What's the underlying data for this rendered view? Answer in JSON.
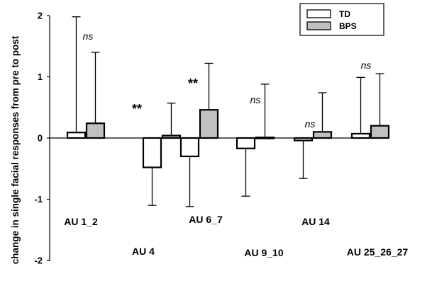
{
  "chart_data": {
    "type": "bar",
    "ylabel": "change in single facial responses from pre to post",
    "ylim": [
      -2,
      2
    ],
    "yticks": [
      "2",
      "1",
      "0",
      "-1",
      "-2"
    ],
    "categories": [
      "AU 1_2",
      "AU 4",
      "AU 6_7",
      "AU 9_10",
      "AU 14",
      "AU 25_26_27"
    ],
    "series": [
      {
        "name": "TD",
        "color": "#ffffff",
        "values": [
          0.09,
          -0.48,
          -0.3,
          -0.17,
          -0.04,
          0.07
        ],
        "error_tips": [
          1.98,
          -1.1,
          -1.12,
          -0.95,
          -0.66,
          0.99
        ]
      },
      {
        "name": "BPS",
        "color": "#c0c0c0",
        "values": [
          0.24,
          0.04,
          0.46,
          0.01,
          0.1,
          0.2
        ],
        "error_tips": [
          1.4,
          0.57,
          1.22,
          0.88,
          0.74,
          1.05
        ]
      }
    ],
    "annotations": [
      "ns",
      "**",
      "**",
      "ns",
      "ns",
      "ns"
    ],
    "legend_position": "top-right"
  }
}
